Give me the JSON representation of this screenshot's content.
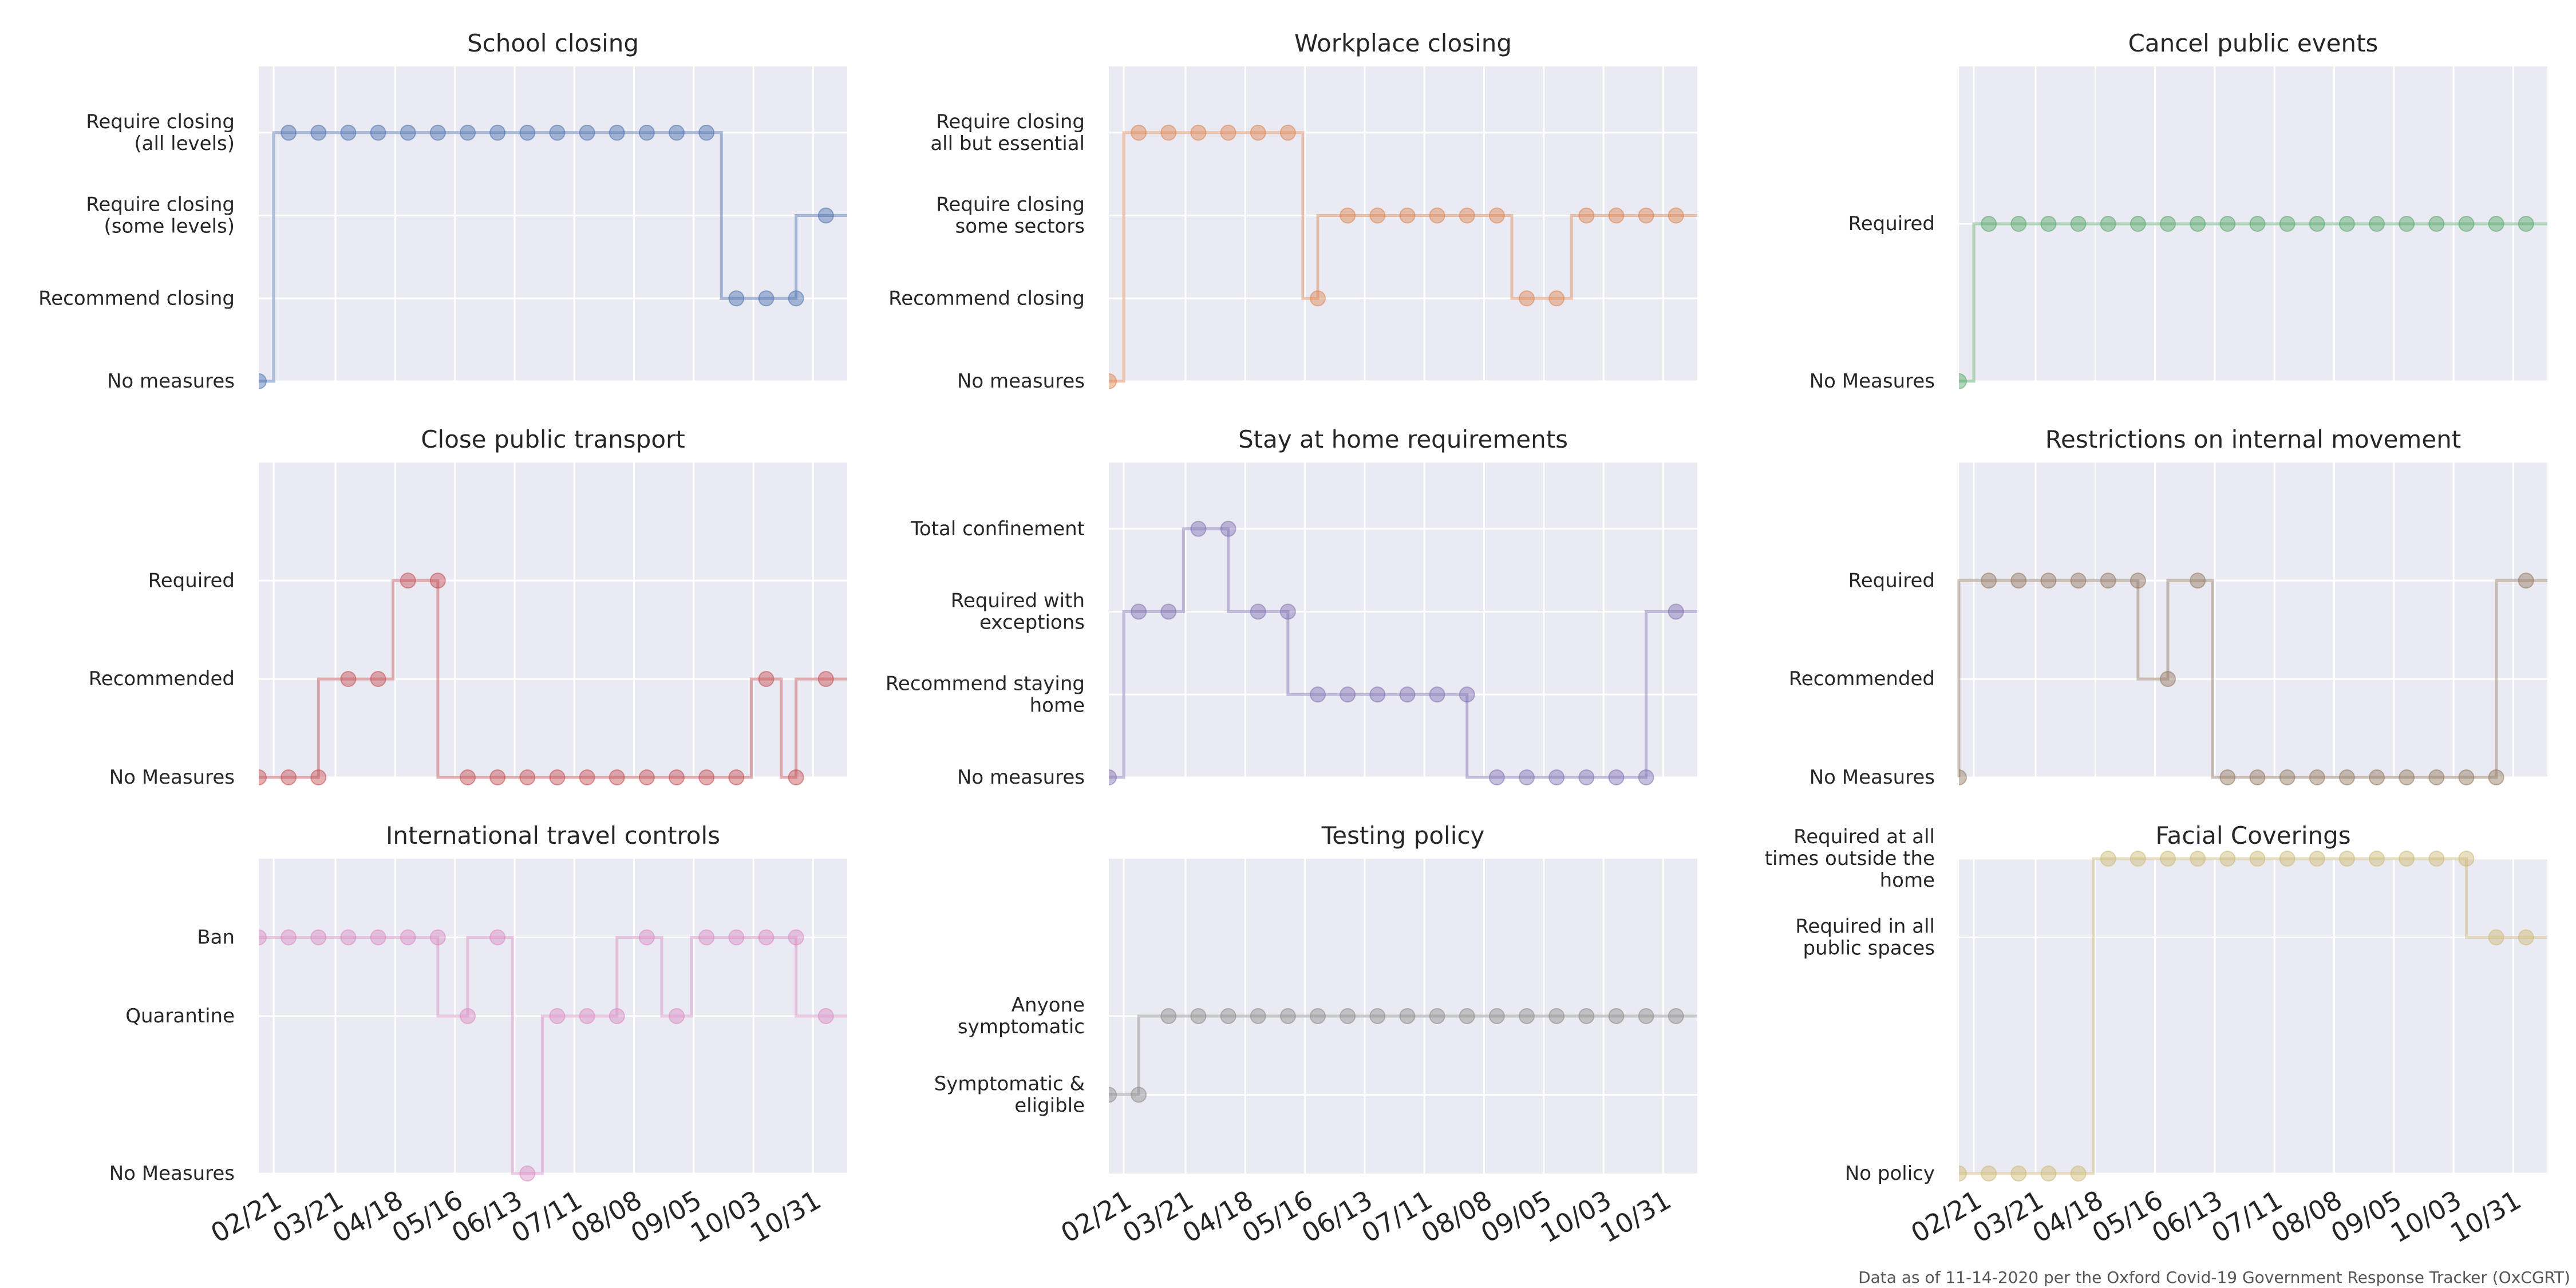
{
  "footnote": "Data as of 11-14-2020 per the Oxford Covid-19 Government Response Tracker (OxCGRT)",
  "x_tick_labels": [
    "02/21",
    "03/21",
    "04/18",
    "05/16",
    "06/13",
    "07/11",
    "08/08",
    "09/05",
    "10/03",
    "10/31"
  ],
  "chart_data": [
    {
      "type": "line",
      "title": "School closing",
      "color": "#4C72B0",
      "y_ticks": [
        {
          "value": 0,
          "label": "No measures"
        },
        {
          "value": 1,
          "label": "Recommend closing"
        },
        {
          "value": 2,
          "label": "Require closing\n(some levels)"
        },
        {
          "value": 3,
          "label": "Require closing\n(all levels)"
        }
      ],
      "ylim": [
        0,
        3.8
      ],
      "x": [
        "2020-02-14",
        "2020-02-21",
        "2020-02-28",
        "2020-03-06",
        "2020-03-13",
        "2020-03-20",
        "2020-03-27",
        "2020-04-03",
        "2020-04-10",
        "2020-04-17",
        "2020-04-24",
        "2020-05-01",
        "2020-05-08",
        "2020-05-15",
        "2020-05-22",
        "2020-05-29",
        "2020-06-05",
        "2020-06-12",
        "2020-06-19",
        "2020-06-26",
        "2020-07-03",
        "2020-07-10",
        "2020-07-17",
        "2020-07-24",
        "2020-07-31",
        "2020-08-07",
        "2020-08-14",
        "2020-08-21",
        "2020-08-28",
        "2020-09-04",
        "2020-09-11",
        "2020-09-18",
        "2020-09-25",
        "2020-10-02",
        "2020-10-09",
        "2020-10-16",
        "2020-10-23",
        "2020-10-30",
        "2020-11-06",
        "2020-11-13"
      ],
      "values": [
        0,
        0,
        3,
        3,
        3,
        3,
        3,
        3,
        3,
        3,
        3,
        3,
        3,
        3,
        3,
        3,
        3,
        3,
        3,
        3,
        3,
        3,
        3,
        3,
        3,
        3,
        3,
        3,
        3,
        3,
        3,
        3,
        1,
        1,
        1,
        1,
        1,
        2,
        2,
        2
      ]
    },
    {
      "type": "line",
      "title": "Workplace closing",
      "color": "#DD8452",
      "y_ticks": [
        {
          "value": 0,
          "label": "No measures"
        },
        {
          "value": 1,
          "label": "Recommend closing"
        },
        {
          "value": 2,
          "label": "Require closing\nsome sectors"
        },
        {
          "value": 3,
          "label": "Require closing\nall but essential"
        }
      ],
      "ylim": [
        0,
        3.8
      ],
      "x": [
        "2020-02-14",
        "2020-02-21",
        "2020-02-28",
        "2020-03-06",
        "2020-03-13",
        "2020-03-20",
        "2020-03-27",
        "2020-04-03",
        "2020-04-10",
        "2020-04-17",
        "2020-04-24",
        "2020-05-01",
        "2020-05-08",
        "2020-05-15",
        "2020-05-22",
        "2020-05-29",
        "2020-06-05",
        "2020-06-12",
        "2020-06-19",
        "2020-06-26",
        "2020-07-03",
        "2020-07-10",
        "2020-07-17",
        "2020-07-24",
        "2020-07-31",
        "2020-08-07",
        "2020-08-14",
        "2020-08-21",
        "2020-08-28",
        "2020-09-04",
        "2020-09-11",
        "2020-09-18",
        "2020-09-25",
        "2020-10-02",
        "2020-10-09",
        "2020-10-16",
        "2020-10-23",
        "2020-10-30",
        "2020-11-06",
        "2020-11-13"
      ],
      "values": [
        0,
        0,
        3,
        3,
        3,
        3,
        3,
        3,
        3,
        3,
        3,
        3,
        3,
        3,
        1,
        2,
        2,
        2,
        2,
        2,
        2,
        2,
        2,
        2,
        2,
        2,
        2,
        2,
        1,
        1,
        1,
        1,
        2,
        2,
        2,
        2,
        2,
        2,
        2,
        2
      ]
    },
    {
      "type": "line",
      "title": "Cancel public events",
      "color": "#55A868",
      "y_ticks": [
        {
          "value": 0,
          "label": "No Measures"
        },
        {
          "value": 2,
          "label": "Required"
        }
      ],
      "ylim": [
        0,
        4
      ],
      "x": [
        "2020-02-14",
        "2020-02-21",
        "2020-02-28",
        "2020-03-06",
        "2020-03-13",
        "2020-03-20",
        "2020-03-27",
        "2020-04-03",
        "2020-04-10",
        "2020-04-17",
        "2020-04-24",
        "2020-05-01",
        "2020-05-08",
        "2020-05-15",
        "2020-05-22",
        "2020-05-29",
        "2020-06-05",
        "2020-06-12",
        "2020-06-19",
        "2020-06-26",
        "2020-07-03",
        "2020-07-10",
        "2020-07-17",
        "2020-07-24",
        "2020-07-31",
        "2020-08-07",
        "2020-08-14",
        "2020-08-21",
        "2020-08-28",
        "2020-09-04",
        "2020-09-11",
        "2020-09-18",
        "2020-09-25",
        "2020-10-02",
        "2020-10-09",
        "2020-10-16",
        "2020-10-23",
        "2020-10-30",
        "2020-11-06",
        "2020-11-13"
      ],
      "values": [
        0,
        0,
        2,
        2,
        2,
        2,
        2,
        2,
        2,
        2,
        2,
        2,
        2,
        2,
        2,
        2,
        2,
        2,
        2,
        2,
        2,
        2,
        2,
        2,
        2,
        2,
        2,
        2,
        2,
        2,
        2,
        2,
        2,
        2,
        2,
        2,
        2,
        2,
        2,
        2
      ]
    },
    {
      "type": "line",
      "title": "Close public transport",
      "color": "#C44E52",
      "y_ticks": [
        {
          "value": 0,
          "label": "No Measures"
        },
        {
          "value": 1,
          "label": "Recommended"
        },
        {
          "value": 2,
          "label": "Required"
        }
      ],
      "ylim": [
        0,
        3.2
      ],
      "x": [
        "2020-02-14",
        "2020-02-21",
        "2020-02-28",
        "2020-03-06",
        "2020-03-13",
        "2020-03-20",
        "2020-03-27",
        "2020-04-03",
        "2020-04-10",
        "2020-04-17",
        "2020-04-24",
        "2020-05-01",
        "2020-05-08",
        "2020-05-15",
        "2020-05-22",
        "2020-05-29",
        "2020-06-05",
        "2020-06-12",
        "2020-06-19",
        "2020-06-26",
        "2020-07-03",
        "2020-07-10",
        "2020-07-17",
        "2020-07-24",
        "2020-07-31",
        "2020-08-07",
        "2020-08-14",
        "2020-08-21",
        "2020-08-28",
        "2020-09-04",
        "2020-09-11",
        "2020-09-18",
        "2020-09-25",
        "2020-10-02",
        "2020-10-09",
        "2020-10-16",
        "2020-10-23",
        "2020-10-30",
        "2020-11-06",
        "2020-11-13"
      ],
      "values": [
        0,
        0,
        0,
        0,
        0,
        1,
        1,
        1,
        1,
        1,
        2,
        2,
        2,
        0,
        0,
        0,
        0,
        0,
        0,
        0,
        0,
        0,
        0,
        0,
        0,
        0,
        0,
        0,
        0,
        0,
        0,
        0,
        0,
        0,
        1,
        1,
        0,
        1,
        1,
        1
      ]
    },
    {
      "type": "line",
      "title": "Stay at home requirements",
      "color": "#8172B3",
      "y_ticks": [
        {
          "value": 0,
          "label": "No measures"
        },
        {
          "value": 1,
          "label": "Recommend staying\nhome"
        },
        {
          "value": 2,
          "label": "Required with\nexceptions"
        },
        {
          "value": 3,
          "label": "Total confinement"
        }
      ],
      "ylim": [
        0,
        3.8
      ],
      "x": [
        "2020-02-14",
        "2020-02-21",
        "2020-02-28",
        "2020-03-06",
        "2020-03-13",
        "2020-03-20",
        "2020-03-27",
        "2020-04-03",
        "2020-04-10",
        "2020-04-17",
        "2020-04-24",
        "2020-05-01",
        "2020-05-08",
        "2020-05-15",
        "2020-05-22",
        "2020-05-29",
        "2020-06-05",
        "2020-06-12",
        "2020-06-19",
        "2020-06-26",
        "2020-07-03",
        "2020-07-10",
        "2020-07-17",
        "2020-07-24",
        "2020-07-31",
        "2020-08-07",
        "2020-08-14",
        "2020-08-21",
        "2020-08-28",
        "2020-09-04",
        "2020-09-11",
        "2020-09-18",
        "2020-09-25",
        "2020-10-02",
        "2020-10-09",
        "2020-10-16",
        "2020-10-23",
        "2020-10-30",
        "2020-11-06",
        "2020-11-13"
      ],
      "values": [
        0,
        0,
        2,
        2,
        2,
        2,
        3,
        3,
        3,
        2,
        2,
        2,
        2,
        1,
        1,
        1,
        1,
        1,
        1,
        1,
        1,
        1,
        1,
        1,
        1,
        0,
        0,
        0,
        0,
        0,
        0,
        0,
        0,
        0,
        0,
        0,
        0,
        2,
        2,
        2
      ]
    },
    {
      "type": "line",
      "title": "Restrictions on internal movement",
      "color": "#937860",
      "y_ticks": [
        {
          "value": 0,
          "label": "No Measures"
        },
        {
          "value": 1,
          "label": "Recommended"
        },
        {
          "value": 2,
          "label": "Required"
        }
      ],
      "ylim": [
        0,
        3.2
      ],
      "x": [
        "2020-02-14",
        "2020-02-21",
        "2020-02-28",
        "2020-03-06",
        "2020-03-13",
        "2020-03-20",
        "2020-03-27",
        "2020-04-03",
        "2020-04-10",
        "2020-04-17",
        "2020-04-24",
        "2020-05-01",
        "2020-05-08",
        "2020-05-15",
        "2020-05-22",
        "2020-05-29",
        "2020-06-05",
        "2020-06-12",
        "2020-06-19",
        "2020-06-26",
        "2020-07-03",
        "2020-07-10",
        "2020-07-17",
        "2020-07-24",
        "2020-07-31",
        "2020-08-07",
        "2020-08-14",
        "2020-08-21",
        "2020-08-28",
        "2020-09-04",
        "2020-09-11",
        "2020-09-18",
        "2020-09-25",
        "2020-10-02",
        "2020-10-09",
        "2020-10-16",
        "2020-10-23",
        "2020-10-30",
        "2020-11-06",
        "2020-11-13"
      ],
      "values": [
        0,
        2,
        2,
        2,
        2,
        2,
        2,
        2,
        2,
        2,
        2,
        2,
        2,
        1,
        1,
        2,
        2,
        2,
        0,
        0,
        0,
        0,
        0,
        0,
        0,
        0,
        0,
        0,
        0,
        0,
        0,
        0,
        0,
        0,
        0,
        0,
        0,
        2,
        2,
        2
      ]
    },
    {
      "type": "line",
      "title": "International travel controls",
      "color": "#DA8BC3",
      "y_ticks": [
        {
          "value": 0,
          "label": "No Measures"
        },
        {
          "value": 2,
          "label": "Quarantine"
        },
        {
          "value": 3,
          "label": "Ban"
        }
      ],
      "ylim": [
        0,
        4
      ],
      "x": [
        "2020-02-14",
        "2020-02-21",
        "2020-02-28",
        "2020-03-06",
        "2020-03-13",
        "2020-03-20",
        "2020-03-27",
        "2020-04-03",
        "2020-04-10",
        "2020-04-17",
        "2020-04-24",
        "2020-05-01",
        "2020-05-08",
        "2020-05-15",
        "2020-05-22",
        "2020-05-29",
        "2020-06-05",
        "2020-06-12",
        "2020-06-19",
        "2020-06-26",
        "2020-07-03",
        "2020-07-10",
        "2020-07-17",
        "2020-07-24",
        "2020-07-31",
        "2020-08-07",
        "2020-08-14",
        "2020-08-21",
        "2020-08-28",
        "2020-09-04",
        "2020-09-11",
        "2020-09-18",
        "2020-09-25",
        "2020-10-02",
        "2020-10-09",
        "2020-10-16",
        "2020-10-23",
        "2020-10-30",
        "2020-11-06",
        "2020-11-13"
      ],
      "values": [
        3,
        3,
        3,
        3,
        3,
        3,
        3,
        3,
        3,
        3,
        3,
        3,
        3,
        2,
        2,
        3,
        3,
        3,
        0,
        0,
        2,
        2,
        2,
        2,
        2,
        3,
        3,
        3,
        2,
        2,
        3,
        3,
        3,
        3,
        3,
        3,
        3,
        2,
        2,
        2
      ]
    },
    {
      "type": "line",
      "title": "Testing policy",
      "color": "#8C8C8C",
      "y_ticks": [
        {
          "value": 1,
          "label": "Symptomatic &\neligible"
        },
        {
          "value": 2,
          "label": "Anyone\nsymptomatic"
        }
      ],
      "ylim": [
        0,
        4
      ],
      "x": [
        "2020-02-14",
        "2020-02-21",
        "2020-02-28",
        "2020-03-06",
        "2020-03-13",
        "2020-03-20",
        "2020-03-27",
        "2020-04-03",
        "2020-04-10",
        "2020-04-17",
        "2020-04-24",
        "2020-05-01",
        "2020-05-08",
        "2020-05-15",
        "2020-05-22",
        "2020-05-29",
        "2020-06-05",
        "2020-06-12",
        "2020-06-19",
        "2020-06-26",
        "2020-07-03",
        "2020-07-10",
        "2020-07-17",
        "2020-07-24",
        "2020-07-31",
        "2020-08-07",
        "2020-08-14",
        "2020-08-21",
        "2020-08-28",
        "2020-09-04",
        "2020-09-11",
        "2020-09-18",
        "2020-09-25",
        "2020-10-02",
        "2020-10-09",
        "2020-10-16",
        "2020-10-23",
        "2020-10-30",
        "2020-11-06",
        "2020-11-13"
      ],
      "values": [
        1,
        1,
        1,
        2,
        2,
        2,
        2,
        2,
        2,
        2,
        2,
        2,
        2,
        2,
        2,
        2,
        2,
        2,
        2,
        2,
        2,
        2,
        2,
        2,
        2,
        2,
        2,
        2,
        2,
        2,
        2,
        2,
        2,
        2,
        2,
        2,
        2,
        2,
        2,
        2
      ]
    },
    {
      "type": "line",
      "title": "Facial Coverings",
      "color": "#CCB974",
      "y_ticks": [
        {
          "value": 0,
          "label": "No policy"
        },
        {
          "value": 3,
          "label": "Required in all\npublic spaces"
        },
        {
          "value": 4,
          "label": "Required at all\ntimes outside the\nhome"
        }
      ],
      "ylim": [
        0,
        4
      ],
      "x": [
        "2020-02-14",
        "2020-02-21",
        "2020-02-28",
        "2020-03-06",
        "2020-03-13",
        "2020-03-20",
        "2020-03-27",
        "2020-04-03",
        "2020-04-10",
        "2020-04-17",
        "2020-04-24",
        "2020-05-01",
        "2020-05-08",
        "2020-05-15",
        "2020-05-22",
        "2020-05-29",
        "2020-06-05",
        "2020-06-12",
        "2020-06-19",
        "2020-06-26",
        "2020-07-03",
        "2020-07-10",
        "2020-07-17",
        "2020-07-24",
        "2020-07-31",
        "2020-08-07",
        "2020-08-14",
        "2020-08-21",
        "2020-08-28",
        "2020-09-04",
        "2020-09-11",
        "2020-09-18",
        "2020-09-25",
        "2020-10-02",
        "2020-10-09",
        "2020-10-16",
        "2020-10-23",
        "2020-10-30",
        "2020-11-06",
        "2020-11-13"
      ],
      "values": [
        0,
        0,
        0,
        0,
        0,
        0,
        0,
        0,
        0,
        0,
        4,
        4,
        4,
        4,
        4,
        4,
        4,
        4,
        4,
        4,
        4,
        4,
        4,
        4,
        4,
        4,
        4,
        4,
        4,
        4,
        4,
        4,
        4,
        4,
        4,
        3,
        3,
        3,
        3,
        3
      ]
    }
  ]
}
